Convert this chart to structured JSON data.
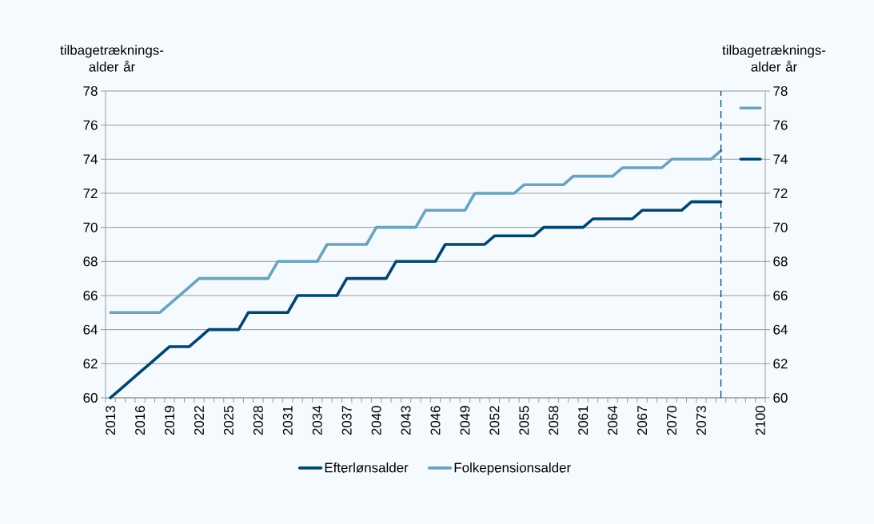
{
  "chart_data": {
    "type": "line",
    "ylabel": "tilbagetræknings-alder år",
    "y2label": "tilbagetræknings-alder år",
    "categories": [
      "2013",
      null,
      null,
      "2016",
      null,
      null,
      "2019",
      null,
      null,
      "2022",
      null,
      null,
      "2025",
      null,
      null,
      "2028",
      null,
      null,
      "2031",
      null,
      null,
      "2034",
      null,
      null,
      "2037",
      null,
      null,
      "2040",
      null,
      null,
      "2043",
      null,
      null,
      "2046",
      null,
      null,
      "2049",
      null,
      null,
      "2052",
      null,
      null,
      "2055",
      null,
      null,
      "2058",
      null,
      null,
      "2061",
      null,
      null,
      "2064",
      null,
      null,
      "2067",
      null,
      null,
      "2070",
      null,
      null,
      "2073",
      null,
      null,
      null,
      null,
      null,
      "2100"
    ],
    "series": [
      {
        "name": "Efterlønsalder",
        "color": "#00466f",
        "values": [
          60,
          60.5,
          61,
          61.5,
          62,
          62.5,
          63,
          63,
          63,
          63.5,
          64,
          64,
          64,
          64,
          65,
          65,
          65,
          65,
          65,
          66,
          66,
          66,
          66,
          66,
          67,
          67,
          67,
          67,
          67,
          68,
          68,
          68,
          68,
          68,
          69,
          69,
          69,
          69,
          69,
          69.5,
          69.5,
          69.5,
          69.5,
          69.5,
          70,
          70,
          70,
          70,
          70,
          70.5,
          70.5,
          70.5,
          70.5,
          70.5,
          71,
          71,
          71,
          71,
          71,
          71.5,
          71.5,
          71.5,
          71.5,
          null,
          74,
          74,
          74
        ]
      },
      {
        "name": "Folkepensionsalder",
        "color": "#6aa3be",
        "values": [
          65,
          65,
          65,
          65,
          65,
          65,
          65.5,
          66,
          66.5,
          67,
          67,
          67,
          67,
          67,
          67,
          67,
          67,
          68,
          68,
          68,
          68,
          68,
          69,
          69,
          69,
          69,
          69,
          70,
          70,
          70,
          70,
          70,
          71,
          71,
          71,
          71,
          71,
          72,
          72,
          72,
          72,
          72,
          72.5,
          72.5,
          72.5,
          72.5,
          72.5,
          73,
          73,
          73,
          73,
          73,
          73.5,
          73.5,
          73.5,
          73.5,
          73.5,
          74,
          74,
          74,
          74,
          74,
          74.5,
          null,
          77,
          77,
          77
        ]
      }
    ],
    "ylim": [
      60,
      78
    ],
    "yticks": [
      60,
      62,
      64,
      66,
      68,
      70,
      72,
      74,
      76,
      78
    ],
    "y2lim": [
      60,
      78
    ],
    "y2ticks": [
      60,
      62,
      64,
      66,
      68,
      70,
      72,
      74,
      76,
      78
    ],
    "grid": "y",
    "legend": "bottom",
    "marker": "none"
  }
}
